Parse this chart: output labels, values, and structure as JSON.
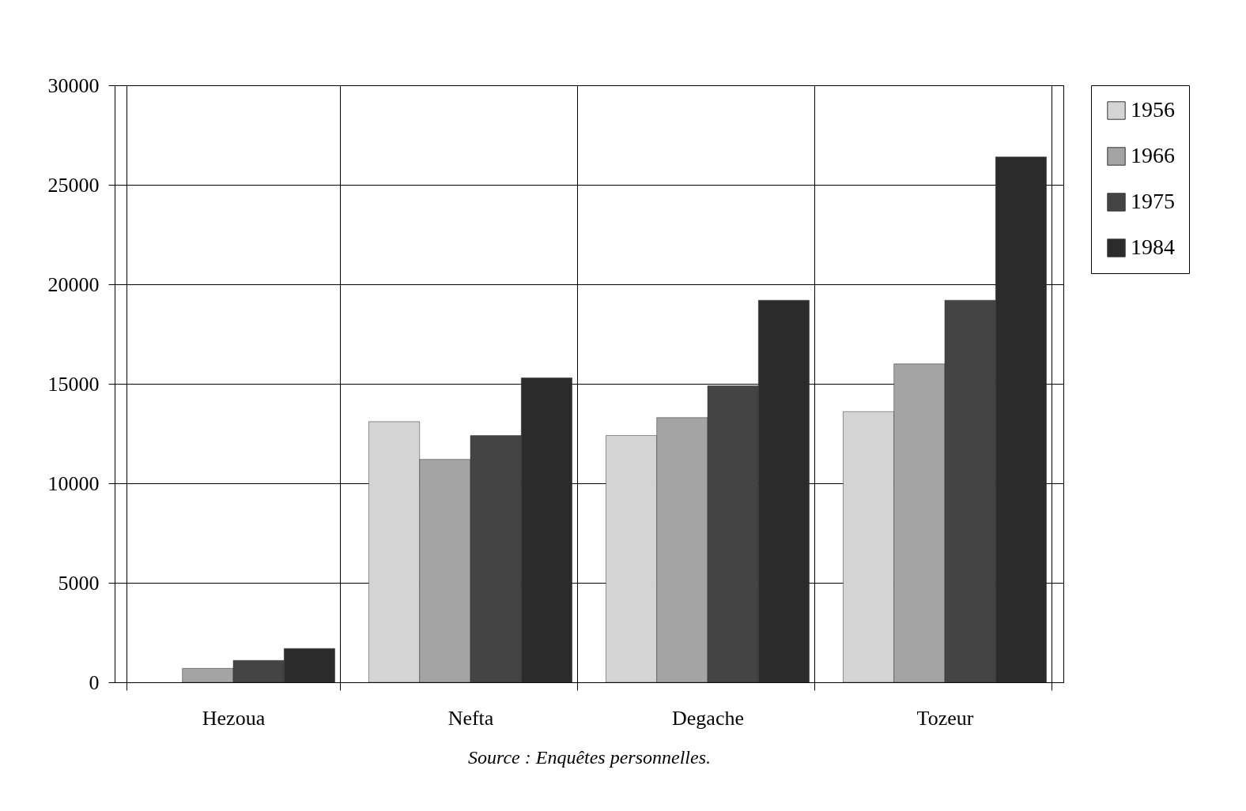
{
  "chart_data": {
    "type": "bar",
    "categories": [
      "Hezoua",
      "Nefta",
      "Degache",
      "Tozeur"
    ],
    "series": [
      {
        "name": "1956",
        "color": "#d4d4d4",
        "values": [
          null,
          13100,
          12400,
          13600
        ]
      },
      {
        "name": "1966",
        "color": "#a4a4a4",
        "values": [
          700,
          11200,
          13300,
          16000
        ]
      },
      {
        "name": "1975",
        "color": "#444444",
        "values": [
          1100,
          12400,
          14900,
          19200
        ]
      },
      {
        "name": "1984",
        "color": "#2b2b2b",
        "values": [
          1700,
          15300,
          19200,
          26400
        ]
      }
    ],
    "ylim": [
      0,
      30000
    ],
    "yticks": [
      0,
      5000,
      10000,
      15000,
      20000,
      25000,
      30000
    ],
    "grid": true,
    "legend": "right",
    "annotations": [
      "Source : Enquêtes personnelles."
    ]
  }
}
